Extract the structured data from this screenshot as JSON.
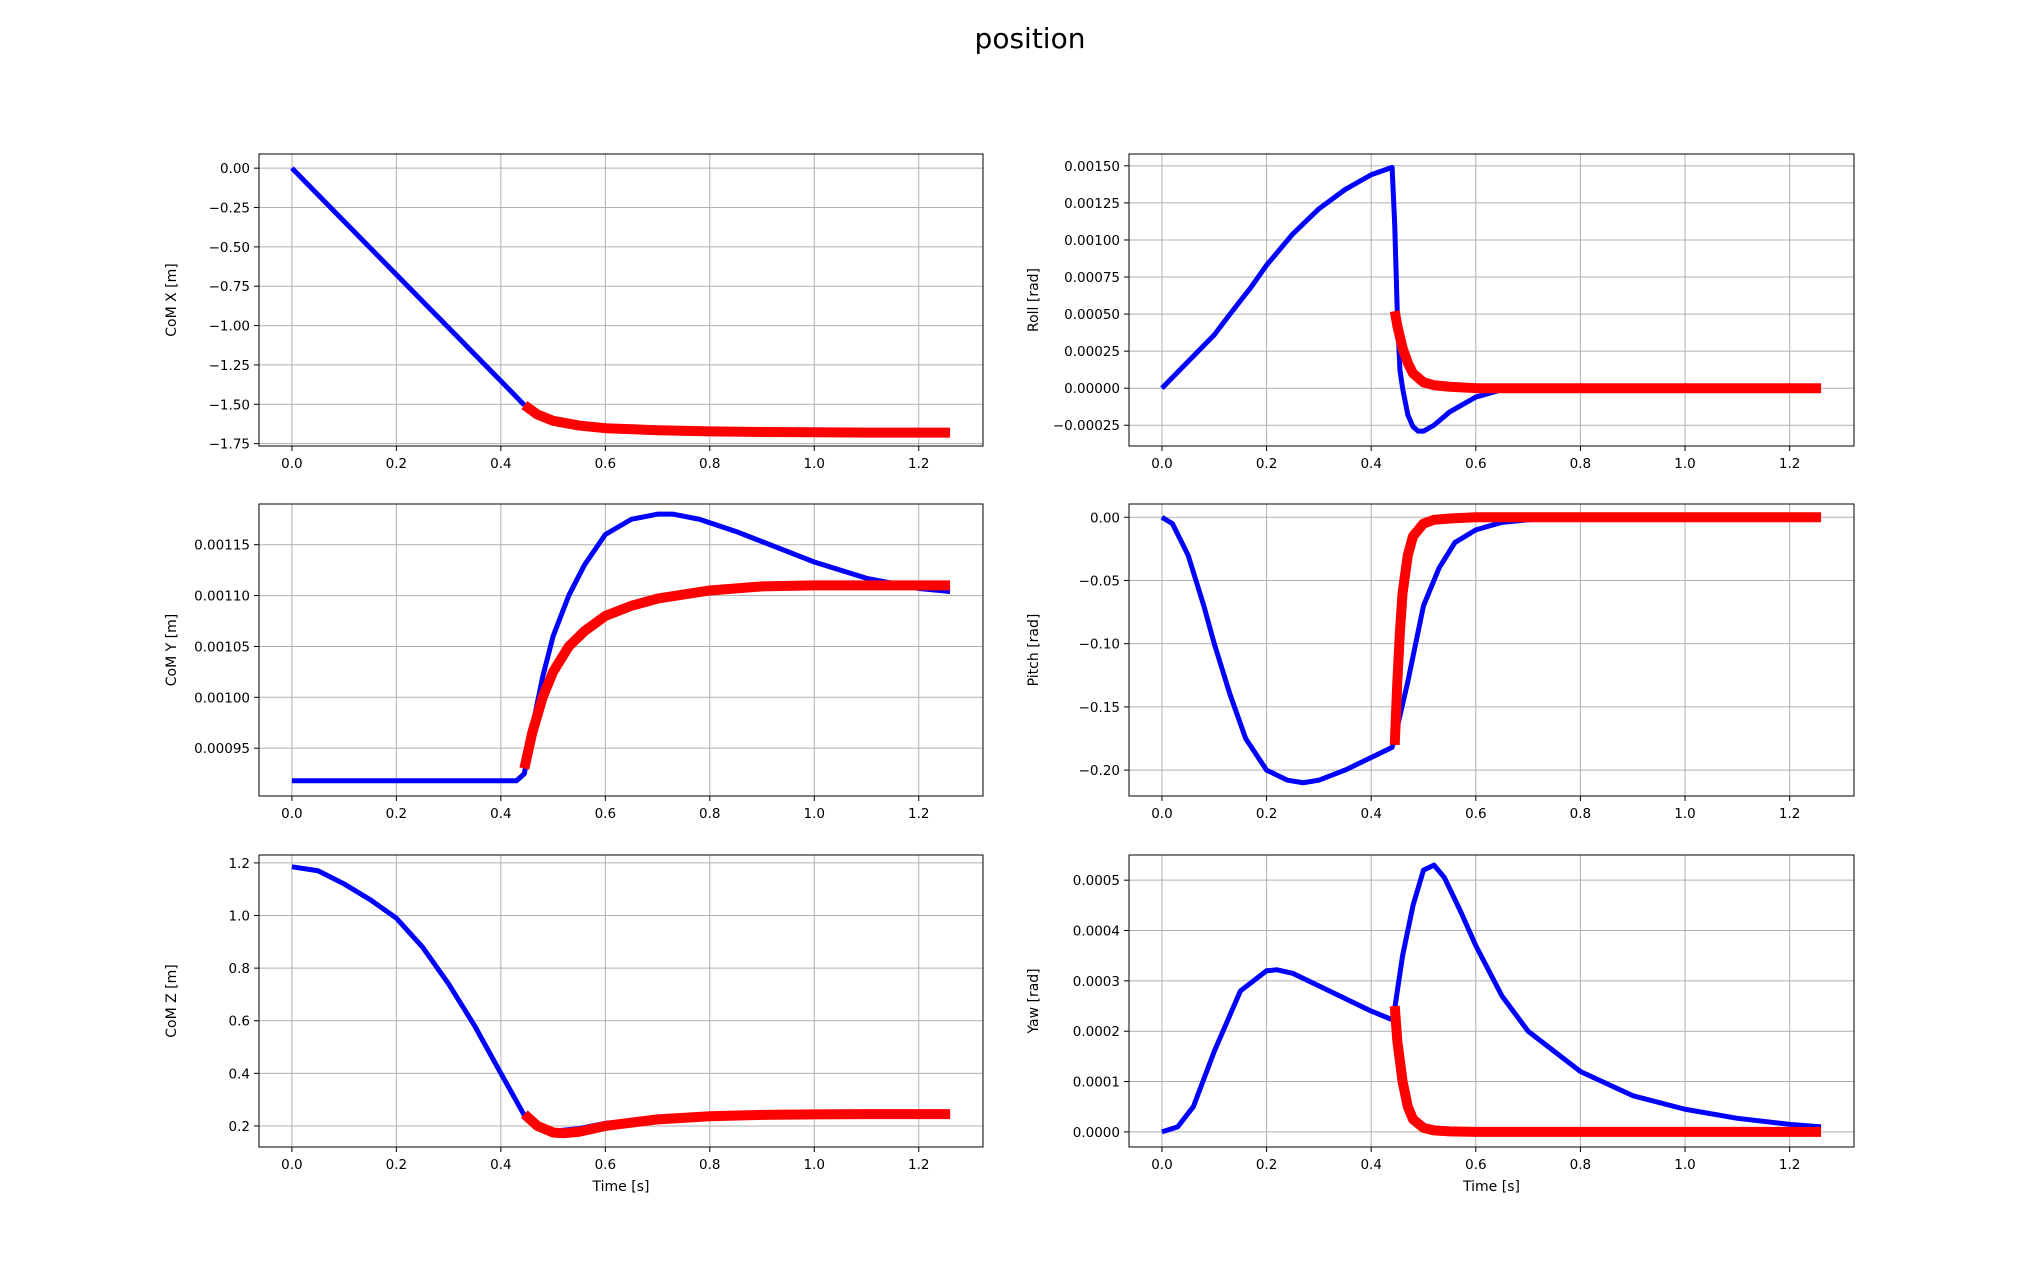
{
  "figure": {
    "title": "position"
  },
  "colors": {
    "series_a": "#0000ff",
    "series_b": "#ff0000",
    "grid": "#b0b0b0"
  },
  "chart_data": [
    {
      "type": "line",
      "ylabel": "CoM X [m]",
      "xlabel": "",
      "xlim": [
        -0.063,
        1.323
      ],
      "ylim": [
        -1.765,
        0.09
      ],
      "xticks": [
        0.0,
        0.2,
        0.4,
        0.6,
        0.8,
        1.0,
        1.2
      ],
      "xtick_labels": [
        "0.0",
        "0.2",
        "0.4",
        "0.6",
        "0.8",
        "1.0",
        "1.2"
      ],
      "yticks": [
        0.0,
        -0.25,
        -0.5,
        -0.75,
        -1.0,
        -1.25,
        -1.5,
        -1.75
      ],
      "ytick_labels": [
        "0.00",
        "−0.25",
        "−0.50",
        "−0.75",
        "−1.00",
        "−1.25",
        "−1.50",
        "−1.75"
      ],
      "grid": true,
      "series": [
        {
          "x": [
            0.0,
            0.1,
            0.2,
            0.3,
            0.4,
            0.445
          ],
          "y": [
            0.0,
            -0.338,
            -0.676,
            -1.014,
            -1.352,
            -1.505
          ]
        },
        {
          "x": [
            0.445,
            0.47,
            0.5,
            0.55,
            0.6,
            0.7,
            0.8,
            0.9,
            1.0,
            1.1,
            1.2,
            1.26
          ],
          "y": [
            -1.505,
            -1.565,
            -1.605,
            -1.635,
            -1.652,
            -1.665,
            -1.672,
            -1.676,
            -1.678,
            -1.68,
            -1.68,
            -1.68
          ]
        }
      ]
    },
    {
      "type": "line",
      "ylabel": "Roll [rad]",
      "xlabel": "",
      "xlim": [
        -0.063,
        1.323
      ],
      "ylim": [
        -0.00039,
        0.00158
      ],
      "xticks": [
        0.0,
        0.2,
        0.4,
        0.6,
        0.8,
        1.0,
        1.2
      ],
      "xtick_labels": [
        "0.0",
        "0.2",
        "0.4",
        "0.6",
        "0.8",
        "1.0",
        "1.2"
      ],
      "yticks": [
        0.0015,
        0.00125,
        0.001,
        0.00075,
        0.0005,
        0.00025,
        0.0,
        -0.00025
      ],
      "ytick_labels": [
        "0.00150",
        "0.00125",
        "0.00100",
        "0.00075",
        "0.00050",
        "0.00025",
        "0.00000",
        "−0.00025"
      ],
      "grid": true,
      "series": [
        {
          "x": [
            0.0,
            0.05,
            0.1,
            0.13,
            0.17,
            0.2,
            0.25,
            0.3,
            0.35,
            0.4,
            0.44,
            0.445,
            0.45,
            0.455,
            0.46,
            0.47,
            0.48,
            0.49,
            0.5,
            0.52,
            0.55,
            0.6,
            0.65,
            0.7,
            0.8,
            1.0,
            1.2,
            1.26
          ],
          "y": [
            0.0,
            0.00018,
            0.00036,
            0.0005,
            0.00068,
            0.00083,
            0.00104,
            0.00121,
            0.00134,
            0.00144,
            0.00149,
            0.0011,
            0.0005,
            0.00012,
            0.0,
            -0.00018,
            -0.00026,
            -0.00029,
            -0.00029,
            -0.00025,
            -0.00016,
            -6e-05,
            -1e-05,
            0.0,
            0.0,
            0.0,
            0.0,
            0.0
          ]
        },
        {
          "x": [
            0.445,
            0.45,
            0.46,
            0.47,
            0.48,
            0.5,
            0.52,
            0.55,
            0.6,
            0.7,
            0.8,
            1.0,
            1.2,
            1.26
          ],
          "y": [
            0.00052,
            0.00042,
            0.00027,
            0.00017,
            0.0001,
            4e-05,
            2e-05,
            1e-05,
            0.0,
            0.0,
            0.0,
            0.0,
            0.0,
            0.0
          ]
        }
      ]
    },
    {
      "type": "line",
      "ylabel": "CoM Y [m]",
      "xlabel": "",
      "xlim": [
        -0.063,
        1.323
      ],
      "ylim": [
        0.000903,
        0.00119
      ],
      "xticks": [
        0.0,
        0.2,
        0.4,
        0.6,
        0.8,
        1.0,
        1.2
      ],
      "xtick_labels": [
        "0.0",
        "0.2",
        "0.4",
        "0.6",
        "0.8",
        "1.0",
        "1.2"
      ],
      "yticks": [
        0.00115,
        0.0011,
        0.00105,
        0.001,
        0.00095
      ],
      "ytick_labels": [
        "0.00115",
        "0.00110",
        "0.00105",
        "0.00100",
        "0.00095"
      ],
      "grid": true,
      "series": [
        {
          "x": [
            0.0,
            0.2,
            0.43,
            0.445,
            0.46,
            0.48,
            0.5,
            0.53,
            0.56,
            0.6,
            0.65,
            0.7,
            0.73,
            0.78,
            0.85,
            0.9,
            1.0,
            1.1,
            1.2,
            1.26
          ],
          "y": [
            0.000918,
            0.000918,
            0.000918,
            0.000925,
            0.00097,
            0.00102,
            0.00106,
            0.0011,
            0.00113,
            0.00116,
            0.001175,
            0.00118,
            0.00118,
            0.001175,
            0.001163,
            0.001153,
            0.001133,
            0.001117,
            0.001107,
            0.001104
          ]
        },
        {
          "x": [
            0.445,
            0.46,
            0.48,
            0.5,
            0.53,
            0.56,
            0.6,
            0.65,
            0.7,
            0.8,
            0.9,
            1.0,
            1.1,
            1.2,
            1.26
          ],
          "y": [
            0.00093,
            0.000965,
            0.001,
            0.001025,
            0.00105,
            0.001065,
            0.00108,
            0.00109,
            0.001097,
            0.001105,
            0.001109,
            0.00111,
            0.00111,
            0.00111,
            0.00111
          ]
        }
      ]
    },
    {
      "type": "line",
      "ylabel": "Pitch [rad]",
      "xlabel": "",
      "xlim": [
        -0.063,
        1.323
      ],
      "ylim": [
        -0.2205,
        0.0105
      ],
      "xticks": [
        0.0,
        0.2,
        0.4,
        0.6,
        0.8,
        1.0,
        1.2
      ],
      "xtick_labels": [
        "0.0",
        "0.2",
        "0.4",
        "0.6",
        "0.8",
        "1.0",
        "1.2"
      ],
      "yticks": [
        0.0,
        -0.05,
        -0.1,
        -0.15,
        -0.2
      ],
      "ytick_labels": [
        "0.00",
        "−0.05",
        "−0.10",
        "−0.15",
        "−0.20"
      ],
      "grid": true,
      "series": [
        {
          "x": [
            0.0,
            0.02,
            0.05,
            0.08,
            0.1,
            0.13,
            0.16,
            0.2,
            0.24,
            0.27,
            0.3,
            0.35,
            0.4,
            0.44,
            0.445,
            0.47,
            0.5,
            0.53,
            0.56,
            0.6,
            0.65,
            0.7,
            0.8,
            1.0,
            1.26
          ],
          "y": [
            0.0,
            -0.005,
            -0.03,
            -0.07,
            -0.1,
            -0.14,
            -0.175,
            -0.2,
            -0.208,
            -0.21,
            -0.208,
            -0.2,
            -0.19,
            -0.182,
            -0.175,
            -0.13,
            -0.07,
            -0.04,
            -0.02,
            -0.01,
            -0.004,
            -0.002,
            0.0,
            0.0,
            0.0
          ]
        },
        {
          "x": [
            0.445,
            0.45,
            0.455,
            0.46,
            0.47,
            0.48,
            0.5,
            0.52,
            0.55,
            0.6,
            0.7,
            1.0,
            1.26
          ],
          "y": [
            -0.18,
            -0.13,
            -0.09,
            -0.06,
            -0.03,
            -0.015,
            -0.005,
            -0.002,
            -0.001,
            0.0,
            0.0,
            0.0,
            0.0
          ]
        }
      ]
    },
    {
      "type": "line",
      "ylabel": "CoM Z [m]",
      "xlabel": "Time [s]",
      "xlim": [
        -0.063,
        1.323
      ],
      "ylim": [
        0.12,
        1.23
      ],
      "xticks": [
        0.0,
        0.2,
        0.4,
        0.6,
        0.8,
        1.0,
        1.2
      ],
      "xtick_labels": [
        "0.0",
        "0.2",
        "0.4",
        "0.6",
        "0.8",
        "1.0",
        "1.2"
      ],
      "yticks": [
        1.2,
        1.0,
        0.8,
        0.6,
        0.4,
        0.2
      ],
      "ytick_labels": [
        "1.2",
        "1.0",
        "0.8",
        "0.6",
        "0.4",
        "0.2"
      ],
      "grid": true,
      "series": [
        {
          "x": [
            0.0,
            0.05,
            0.1,
            0.15,
            0.2,
            0.25,
            0.3,
            0.35,
            0.4,
            0.445,
            0.47,
            0.5,
            0.55,
            0.6,
            0.7,
            0.8,
            0.9,
            1.0,
            1.26
          ],
          "y": [
            1.185,
            1.17,
            1.12,
            1.06,
            0.99,
            0.88,
            0.74,
            0.58,
            0.4,
            0.24,
            0.2,
            0.18,
            0.19,
            0.21,
            0.23,
            0.24,
            0.243,
            0.245,
            0.245
          ]
        },
        {
          "x": [
            0.445,
            0.47,
            0.5,
            0.52,
            0.55,
            0.6,
            0.7,
            0.8,
            0.9,
            1.0,
            1.1,
            1.26
          ],
          "y": [
            0.245,
            0.2,
            0.175,
            0.172,
            0.178,
            0.2,
            0.225,
            0.237,
            0.242,
            0.244,
            0.245,
            0.245
          ]
        }
      ]
    },
    {
      "type": "line",
      "ylabel": "Yaw [rad]",
      "xlabel": "Time [s]",
      "xlim": [
        -0.063,
        1.323
      ],
      "ylim": [
        -3e-05,
        0.00055
      ],
      "xticks": [
        0.0,
        0.2,
        0.4,
        0.6,
        0.8,
        1.0,
        1.2
      ],
      "xtick_labels": [
        "0.0",
        "0.2",
        "0.4",
        "0.6",
        "0.8",
        "1.0",
        "1.2"
      ],
      "yticks": [
        0.0005,
        0.0004,
        0.0003,
        0.0002,
        0.0001,
        0.0
      ],
      "ytick_labels": [
        "0.0005",
        "0.0004",
        "0.0003",
        "0.0002",
        "0.0001",
        "0.0000"
      ],
      "grid": true,
      "series": [
        {
          "x": [
            0.0,
            0.03,
            0.06,
            0.1,
            0.15,
            0.2,
            0.22,
            0.25,
            0.3,
            0.35,
            0.4,
            0.44,
            0.445,
            0.46,
            0.48,
            0.5,
            0.52,
            0.54,
            0.57,
            0.6,
            0.65,
            0.7,
            0.8,
            0.9,
            1.0,
            1.1,
            1.2,
            1.26
          ],
          "y": [
            0.0,
            1e-05,
            5e-05,
            0.00016,
            0.00028,
            0.00032,
            0.000322,
            0.000315,
            0.00029,
            0.000265,
            0.00024,
            0.000223,
            0.000245,
            0.00035,
            0.00045,
            0.00052,
            0.00053,
            0.000505,
            0.00044,
            0.00037,
            0.00027,
            0.0002,
            0.00012,
            7.2e-05,
            4.5e-05,
            2.7e-05,
            1.5e-05,
            1e-05
          ]
        },
        {
          "x": [
            0.445,
            0.45,
            0.46,
            0.47,
            0.48,
            0.5,
            0.52,
            0.55,
            0.6,
            0.7,
            1.0,
            1.26
          ],
          "y": [
            0.00025,
            0.00018,
            0.0001,
            5e-05,
            2.5e-05,
            8e-06,
            3e-06,
            1e-06,
            0.0,
            0.0,
            0.0,
            0.0
          ]
        }
      ]
    }
  ]
}
